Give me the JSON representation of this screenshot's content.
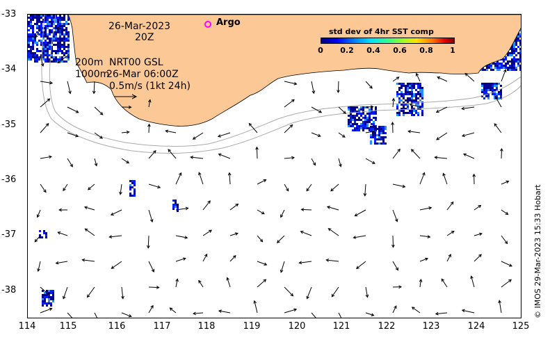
{
  "map": {
    "lon_range": [
      114,
      125
    ],
    "lat_range": [
      -38.5,
      -33
    ],
    "x_ticks": [
      "114",
      "115",
      "116",
      "117",
      "118",
      "119",
      "120",
      "121",
      "122",
      "123",
      "124",
      "125"
    ],
    "y_ticks": [
      "-33",
      "-34",
      "-35",
      "-36",
      "-37",
      "-38"
    ],
    "land_color": "#fcc996",
    "vector_color": "#000000",
    "isobath_color": "#aaaaaa"
  },
  "annotations": {
    "date": "26-Mar-2023",
    "time": "20Z",
    "depth_200": "200m",
    "product": "NRT00 GSL",
    "depth_1000": "1000m",
    "field_time": "26-Mar 06:00Z",
    "scale_label": "0.5m/s (1kt 24h)",
    "argo": "Argo"
  },
  "colorbar": {
    "title": "std dev of 4hr SST comp",
    "labels": [
      "0",
      "0.2",
      "0.4",
      "0.6",
      "0.8",
      "1"
    ]
  },
  "credit": "© IMOS 29-Mar-2023 15:33 Hobart"
}
